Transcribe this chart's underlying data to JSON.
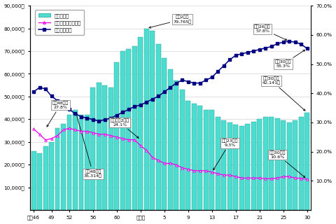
{
  "x_labels": [
    "昭和46",
    "49",
    "52",
    "56",
    "60",
    "平成元",
    "5",
    "9",
    "13",
    "17",
    "21",
    "25",
    "30"
  ],
  "tick_positions": [
    0,
    3,
    6,
    10,
    14,
    18,
    22,
    26,
    30,
    34,
    38,
    42,
    46
  ],
  "bar_values": [
    26000,
    25000,
    28000,
    30000,
    36000,
    38000,
    42000,
    44000,
    42000,
    42000,
    54000,
    56000,
    55000,
    54000,
    65000,
    70000,
    71000,
    72000,
    76000,
    80000,
    79000,
    73000,
    67000,
    62000,
    57000,
    53000,
    48000,
    47000,
    46000,
    44000,
    44000,
    41000,
    39500,
    38500,
    37500,
    37000,
    38000,
    39000,
    40000,
    41000,
    41000,
    40500,
    39500,
    38500,
    39500,
    41000,
    43000
  ],
  "employment_rate": [
    27.8,
    26.0,
    24.0,
    24.5,
    25.5,
    27.5,
    28.0,
    27.5,
    27.0,
    27.0,
    26.5,
    26.0,
    26.0,
    25.5,
    25.0,
    24.5,
    24.1,
    24.1,
    22.0,
    20.5,
    18.0,
    17.0,
    16.0,
    16.0,
    15.5,
    14.5,
    14.0,
    13.5,
    13.5,
    13.5,
    13.0,
    12.5,
    12.0,
    12.0,
    11.5,
    11.0,
    11.0,
    11.0,
    11.0,
    10.8,
    10.8,
    11.0,
    11.5,
    11.5,
    11.0,
    10.9,
    10.6
  ],
  "university_rate": [
    40.5,
    42.0,
    41.5,
    39.0,
    37.5,
    36.0,
    34.5,
    33.0,
    32.0,
    31.5,
    31.0,
    30.5,
    31.0,
    31.5,
    32.5,
    33.5,
    34.5,
    35.5,
    36.0,
    37.0,
    38.0,
    39.0,
    40.5,
    42.0,
    43.5,
    44.5,
    44.0,
    43.5,
    43.5,
    44.5,
    45.5,
    47.5,
    49.5,
    51.5,
    53.0,
    53.5,
    54.0,
    54.5,
    55.0,
    55.5,
    56.0,
    57.0,
    57.5,
    57.8,
    57.5,
    56.8,
    55.3
  ],
  "bar_color": "#4DDDD0",
  "bar_edge_color": "#20A090",
  "employment_color": "#EE00EE",
  "university_color": "#000080",
  "n_bars": 47,
  "left_ylim": [
    0,
    90000
  ],
  "right_ylim": [
    0,
    70.0
  ],
  "left_yticks": [
    10000,
    20000,
    30000,
    40000,
    50000,
    60000,
    70000,
    80000,
    90000
  ],
  "left_yticklabels": [
    "10,000人",
    "20,000人",
    "30,000人",
    "40,000人",
    "50,000人",
    "60,000人",
    "70,000人",
    "80,000人",
    "90,000人"
  ],
  "right_yticks": [
    10.0,
    20.0,
    30.0,
    40.0,
    50.0,
    60.0,
    70.0
  ],
  "right_yticklabels": [
    "10.0%",
    "20.0%",
    "30.0%",
    "40.0%",
    "50.0%",
    "60.0%",
    "70.0%"
  ],
  "bg_color": "#ffffff",
  "fig_bg": "#ffffff",
  "grid_color": "#cccccc"
}
